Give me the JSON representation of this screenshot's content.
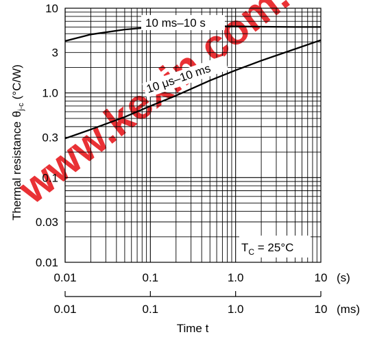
{
  "chart_data": {
    "type": "line",
    "xscale": "log",
    "yscale": "log",
    "xlim": [
      0.01,
      10
    ],
    "ylim": [
      0.01,
      10
    ],
    "grid": true,
    "ylabel": "Thermal resistance",
    "ylabel_symbol": "θ",
    "ylabel_subscript": "j-c",
    "ylabel_unit": "(°C/W)",
    "xlabel": "Time t",
    "y_ticks": [
      {
        "value": 0.01,
        "label": "0.01"
      },
      {
        "value": 0.03,
        "label": "0.03"
      },
      {
        "value": 0.1,
        "label": "0.1"
      },
      {
        "value": 0.3,
        "label": "0.3"
      },
      {
        "value": 1.0,
        "label": "1.0"
      },
      {
        "value": 3,
        "label": "3"
      },
      {
        "value": 10,
        "label": "10"
      }
    ],
    "x_ticks_s": [
      {
        "value": 0.01,
        "label": "0.01"
      },
      {
        "value": 0.1,
        "label": "0.1"
      },
      {
        "value": 1.0,
        "label": "1.0"
      },
      {
        "value": 10,
        "label": "10"
      }
    ],
    "x_unit_s": "(s)",
    "x_ticks_ms": [
      {
        "value": 0.01,
        "label": "0.01"
      },
      {
        "value": 0.1,
        "label": "0.1"
      },
      {
        "value": 1.0,
        "label": "1.0"
      },
      {
        "value": 10,
        "label": "10"
      }
    ],
    "x_unit_ms": "(ms)",
    "series": [
      {
        "name": "10 ms–10 s",
        "x": [
          0.01,
          0.02,
          0.05,
          0.1,
          0.2,
          0.5,
          1,
          2,
          5,
          10
        ],
        "y": [
          4.1,
          4.9,
          5.6,
          5.95,
          6.1,
          6.15,
          6.1,
          6.05,
          6.0,
          6.0
        ]
      },
      {
        "name": "10 μs–10 ms",
        "x": [
          0.01,
          0.02,
          0.05,
          0.1,
          0.2,
          0.5,
          1,
          2,
          5,
          10
        ],
        "y": [
          0.29,
          0.37,
          0.52,
          0.7,
          0.93,
          1.4,
          1.85,
          2.4,
          3.3,
          4.2
        ]
      }
    ],
    "annotation": {
      "prefix": "T",
      "subscript": "C",
      "suffix": " = 25°C"
    },
    "watermark": "www.kexin.com.cn"
  },
  "colors": {
    "line": "#000000",
    "grid": "#000000",
    "watermark": "#e8262b"
  }
}
